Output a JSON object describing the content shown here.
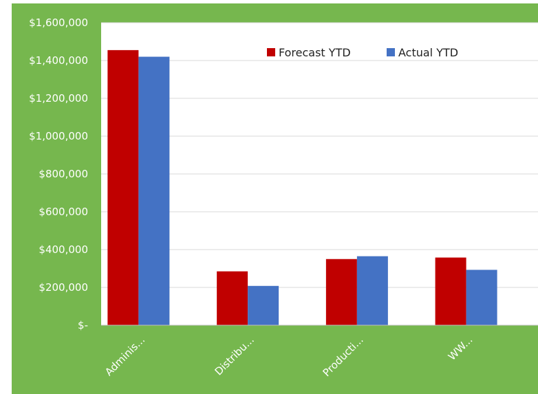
{
  "chart_data": {
    "type": "bar",
    "categories": [
      "Adminis...",
      "Distribu...",
      "Producti...",
      "WW..."
    ],
    "series": [
      {
        "name": "Forecast YTD",
        "color": "#c00000",
        "values": [
          1455000,
          285000,
          350000,
          358000
        ]
      },
      {
        "name": "Actual YTD",
        "color": "#4472c4",
        "values": [
          1420000,
          208000,
          365000,
          293000
        ]
      }
    ],
    "y_tick_labels": [
      "$-",
      "$200,000",
      "$400,000",
      "$600,000",
      "$800,000",
      "$1,000,000",
      "$1,200,000",
      "$1,400,000",
      "$1,600,000"
    ],
    "ylim": [
      0,
      1600000
    ],
    "y_step": 200000,
    "grid": true,
    "legend_position": "top-right",
    "background_color": "#76b74e",
    "plot_background": "#ffffff",
    "gridline_color": "#d9d9d9"
  }
}
